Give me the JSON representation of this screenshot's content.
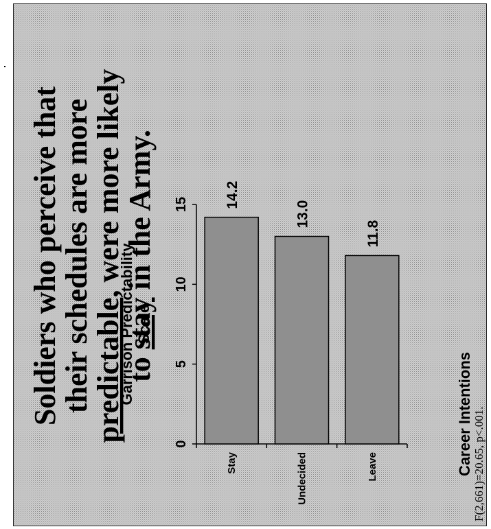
{
  "title": {
    "lines": [
      [
        {
          "text": "Soldiers who perceive that",
          "underline": false
        }
      ],
      [
        {
          "text": "their schedules are more",
          "underline": false
        }
      ],
      [
        {
          "text": "predictable",
          "underline": true
        },
        {
          "text": ", were more likely",
          "underline": false
        }
      ],
      [
        {
          "text": "to ",
          "underline": false
        },
        {
          "text": "stay",
          "underline": true
        },
        {
          "text": " in the Army.",
          "underline": false
        }
      ]
    ]
  },
  "footnote": "F(2,661)=20.65, p<.001.",
  "colors": {
    "bar_fill": "#8f8f8f",
    "background": "#cfcfcf",
    "axis": "#000000"
  },
  "chart_data": {
    "type": "bar",
    "orientation": "rotated-90-ccw",
    "categories": [
      "Stay",
      "Undecided",
      "Leave"
    ],
    "values": [
      14.2,
      13.0,
      11.8
    ],
    "value_labels": [
      "14.2",
      "13.0",
      "11.8"
    ],
    "xlabel": "Career Intentions",
    "ylabel": "Garrison Predictability Scale",
    "ylabel_lines": [
      "Garrison Predictability",
      "Scale"
    ],
    "ylim": [
      0,
      15
    ],
    "yticks": [
      0,
      5,
      10,
      15
    ],
    "ytick_labels": [
      "0",
      "5",
      "10",
      "15"
    ],
    "grid": false,
    "legend": "none"
  }
}
